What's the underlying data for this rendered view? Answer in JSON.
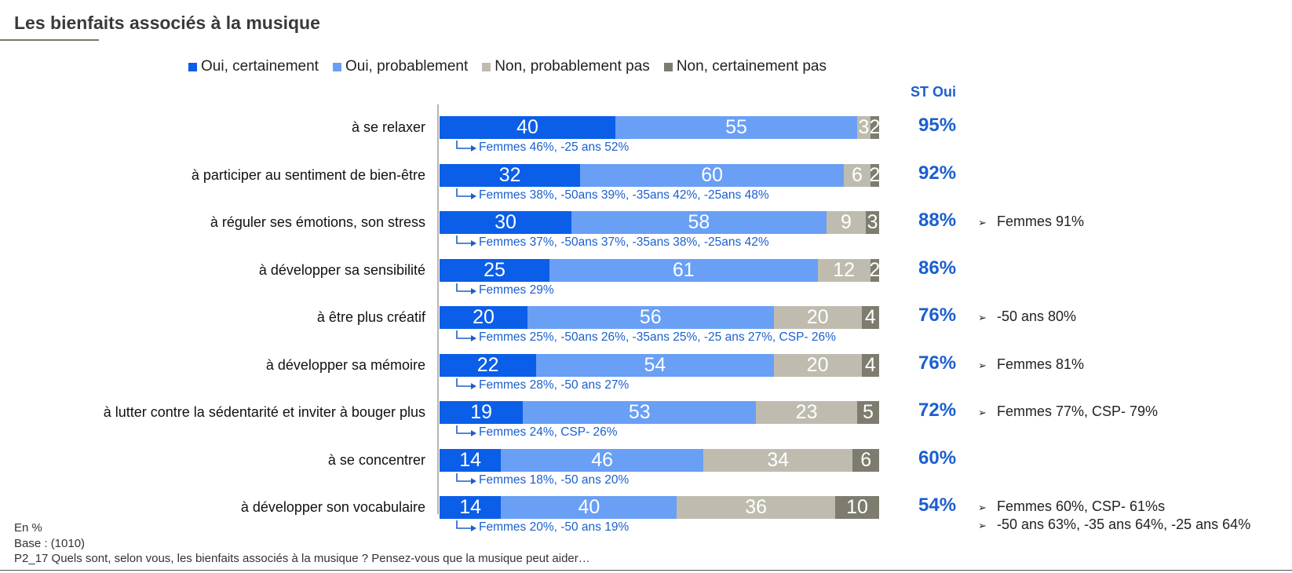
{
  "title": "Les bienfaits associés à la musique",
  "st_header": "ST Oui",
  "colors": {
    "oui_certainement": "#0b5ee8",
    "oui_probablement": "#699ff5",
    "non_probablement_pas": "#bfbcaf",
    "non_certainement_pas": "#7d7c6f",
    "accent": "#1a5fd0"
  },
  "chart_data": {
    "type": "bar",
    "orientation": "horizontal",
    "stacked": true,
    "xlim": [
      0,
      100
    ],
    "legend_position": "top",
    "categories": [
      "à se relaxer",
      "à participer au sentiment de bien-être",
      "à réguler ses émotions, son stress",
      "à développer sa sensibilité",
      "à être plus créatif",
      "à développer sa mémoire",
      "à lutter contre la sédentarité et inviter à bouger plus",
      "à se concentrer",
      "à développer son vocabulaire"
    ],
    "series": [
      {
        "name": "Oui, certainement",
        "color": "#0b5ee8",
        "values": [
          40,
          32,
          30,
          25,
          20,
          22,
          19,
          14,
          14
        ]
      },
      {
        "name": "Oui, probablement",
        "color": "#699ff5",
        "values": [
          55,
          60,
          58,
          61,
          56,
          54,
          53,
          46,
          40
        ]
      },
      {
        "name": "Non, probablement pas",
        "color": "#bfbcaf",
        "values": [
          3,
          6,
          9,
          12,
          20,
          20,
          23,
          34,
          36
        ]
      },
      {
        "name": "Non, certainement pas",
        "color": "#7d7c6f",
        "values": [
          2,
          2,
          3,
          2,
          4,
          4,
          5,
          6,
          10
        ]
      }
    ],
    "st_oui": [
      "95%",
      "92%",
      "88%",
      "86%",
      "76%",
      "76%",
      "72%",
      "60%",
      "54%"
    ],
    "subnotes": [
      "Femmes 46%, -25 ans 52%",
      "Femmes 38%, -50ans 39%, -35ans 42%, -25ans 48%",
      "Femmes 37%, -50ans 37%, -35ans 38%, -25ans 42%",
      "Femmes 29%",
      "Femmes 25%, -50ans 26%, -35ans 25%, -25 ans 27%, CSP- 26%",
      "Femmes 28%, -50 ans 27%",
      "Femmes 24%, CSP- 26%",
      "Femmes 18%, -50 ans 20%",
      "Femmes 20%,  -50 ans 19%"
    ],
    "side_notes": [
      [],
      [],
      [
        "Femmes 91%"
      ],
      [],
      [
        "-50 ans 80%"
      ],
      [
        "Femmes 81%"
      ],
      [
        "Femmes 77%, CSP- 79%"
      ],
      [],
      [
        "Femmes 60%, CSP- 61%s",
        "-50 ans 63%, -35 ans 64%, -25 ans 64%"
      ]
    ]
  },
  "footer": {
    "unit": "En %",
    "base": "Base : (1010)",
    "question": "P2_17 Quels sont, selon vous, les bienfaits associés à la musique ? Pensez-vous que la musique peut aider…"
  }
}
